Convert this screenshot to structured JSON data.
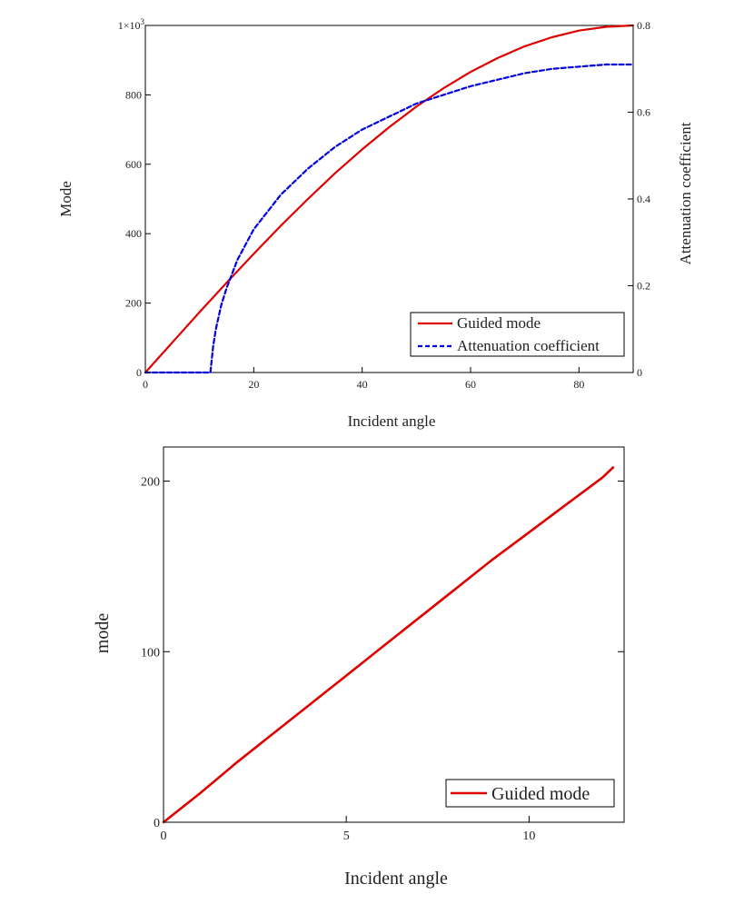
{
  "chart_data": [
    {
      "type": "line",
      "xlabel": "Incident angle",
      "ylabel": "Mode",
      "y2label": "Attenuation coefficient",
      "xlim": [
        0,
        90
      ],
      "ylim": [
        0,
        1000
      ],
      "y2lim": [
        0,
        0.8
      ],
      "x_ticks": [
        0,
        20,
        40,
        60,
        80
      ],
      "x_tick_labels": [
        "0",
        "20",
        "40",
        "60",
        "80"
      ],
      "y_ticks": [
        0,
        200,
        400,
        600,
        800,
        1000
      ],
      "y_tick_labels": [
        "0",
        "200",
        "400",
        "600",
        "800",
        "1×10"
      ],
      "y_top_label_exponent": "3",
      "y2_ticks": [
        0,
        0.2,
        0.4,
        0.6,
        0.8
      ],
      "y2_tick_labels": [
        "0",
        "0.2",
        "0.4",
        "0.6",
        "0.8"
      ],
      "grid": false,
      "legend_position": "bottom-right",
      "series": [
        {
          "name": "Guided mode",
          "axis": "left",
          "color": "#e00000",
          "style": "solid",
          "x": [
            0,
            5,
            10,
            15,
            20,
            25,
            30,
            35,
            40,
            45,
            50,
            55,
            60,
            65,
            70,
            75,
            80,
            85,
            90
          ],
          "y": [
            0,
            87,
            174,
            259,
            342,
            423,
            500,
            574,
            643,
            707,
            766,
            819,
            866,
            906,
            940,
            966,
            985,
            996,
            1000
          ]
        },
        {
          "name": "Attenuation coefficient",
          "axis": "right",
          "color": "#0000e0",
          "style": "dashed",
          "x": [
            0,
            12,
            12.5,
            13,
            14,
            15,
            17,
            20,
            25,
            30,
            35,
            40,
            45,
            50,
            55,
            60,
            65,
            70,
            75,
            80,
            85,
            90
          ],
          "y": [
            0,
            0,
            0.06,
            0.1,
            0.155,
            0.195,
            0.26,
            0.33,
            0.41,
            0.47,
            0.52,
            0.56,
            0.59,
            0.62,
            0.64,
            0.66,
            0.675,
            0.69,
            0.7,
            0.705,
            0.71,
            0.71
          ]
        }
      ]
    },
    {
      "type": "line",
      "xlabel": "Incident angle",
      "ylabel": "mode",
      "xlim": [
        0,
        12.6
      ],
      "ylim": [
        0,
        220
      ],
      "x_ticks": [
        0,
        5,
        10
      ],
      "x_tick_labels": [
        "0",
        "5",
        "10"
      ],
      "y_ticks": [
        0,
        100,
        200
      ],
      "y_tick_labels": [
        "0",
        "100",
        "200"
      ],
      "grid": false,
      "legend_position": "bottom-right",
      "series": [
        {
          "name": "Guided mode",
          "color": "#e00000",
          "style": "solid",
          "x": [
            0,
            1,
            2,
            3,
            4,
            5,
            6,
            7,
            8,
            9,
            10,
            11,
            12,
            12.3
          ],
          "y": [
            0,
            17,
            35,
            52,
            69,
            86,
            103,
            120,
            137,
            154,
            170,
            186,
            202,
            208
          ]
        }
      ]
    }
  ]
}
